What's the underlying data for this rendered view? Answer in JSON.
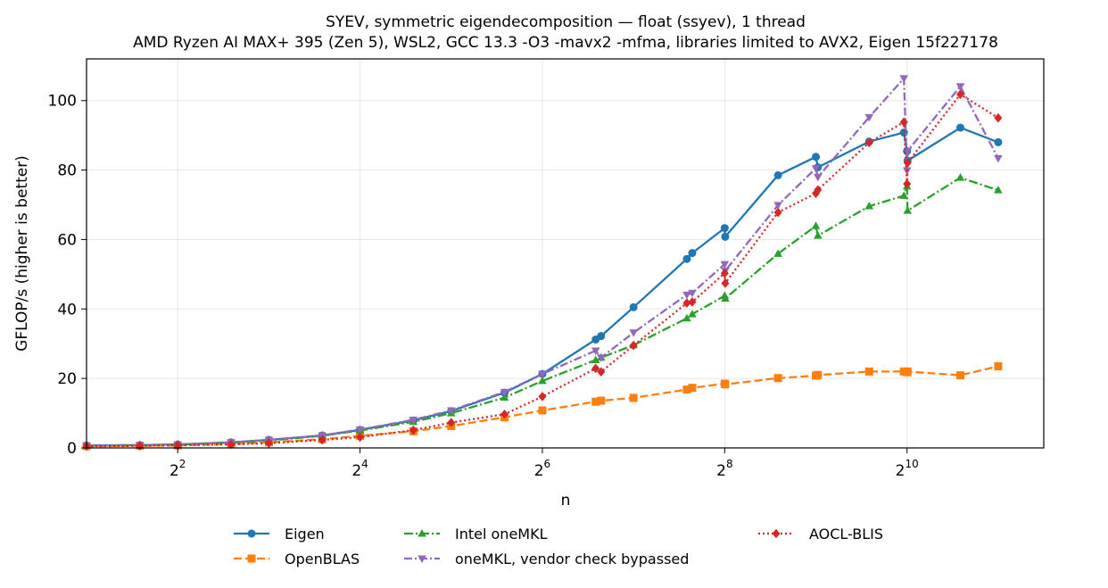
{
  "chart_data": {
    "type": "line",
    "title": "SYEV, symmetric eigendecomposition — float (ssyev), 1 thread",
    "subtitle": "AMD Ryzen AI MAX+ 395 (Zen 5), WSL2, GCC 13.3 -O3 -mavx2 -mfma, libraries limited to AVX2, Eigen 15f227178",
    "xlabel": "n",
    "ylabel": "GFLOP/s (higher is better)",
    "x_scale": "log2",
    "xlim": [
      2,
      2896
    ],
    "ylim": [
      0,
      112
    ],
    "x_ticks": [
      {
        "value": 4,
        "base": "2",
        "exp": "2"
      },
      {
        "value": 16,
        "base": "2",
        "exp": "4"
      },
      {
        "value": 64,
        "base": "2",
        "exp": "6"
      },
      {
        "value": 256,
        "base": "2",
        "exp": "8"
      },
      {
        "value": 1024,
        "base": "2",
        "exp": "10"
      }
    ],
    "y_ticks": [
      0,
      20,
      40,
      60,
      80,
      100
    ],
    "grid": true,
    "legend_position": "below-center",
    "x": [
      2,
      3,
      4,
      6,
      8,
      12,
      16,
      24,
      32,
      48,
      64,
      96,
      100,
      128,
      192,
      200,
      256,
      257,
      384,
      512,
      520,
      768,
      1000,
      1024,
      1028,
      1536,
      2048
    ],
    "series": [
      {
        "name": "Eigen",
        "color": "#1f77b4",
        "marker": "circle",
        "dash": "",
        "values": [
          0.7,
          0.8,
          1.0,
          1.6,
          2.3,
          3.6,
          5.2,
          7.9,
          10.6,
          15.9,
          21.3,
          31.2,
          32.2,
          40.5,
          54.4,
          56.1,
          63.3,
          60.8,
          78.5,
          83.8,
          80.8,
          88.2,
          90.8,
          85.4,
          82.7,
          92.2,
          88.0
        ]
      },
      {
        "name": "OpenBLAS",
        "color": "#ff7f0e",
        "marker": "square",
        "dash": "9,4",
        "values": [
          0.5,
          0.6,
          0.7,
          1.1,
          1.6,
          2.5,
          3.5,
          4.8,
          6.3,
          8.8,
          10.8,
          13.3,
          13.6,
          14.4,
          16.8,
          17.3,
          18.5,
          18.3,
          20.1,
          20.8,
          21.0,
          22.0,
          22.0,
          21.8,
          22.0,
          20.9,
          23.5
        ]
      },
      {
        "name": "Intel oneMKL",
        "color": "#2ca02c",
        "marker": "triangle-up",
        "dash": "10,3,2,3",
        "values": [
          0.7,
          0.8,
          1.0,
          1.5,
          2.1,
          3.5,
          5.0,
          7.5,
          10.0,
          14.5,
          19.3,
          25.3,
          26.0,
          29.6,
          37.3,
          38.5,
          43.8,
          43.0,
          55.9,
          63.9,
          61.1,
          69.6,
          72.6,
          75.3,
          68.3,
          77.8,
          74.2
        ]
      },
      {
        "name": "oneMKL, vendor check bypassed",
        "color": "#9467bd",
        "marker": "triangle-down",
        "dash": "9,3,2,3",
        "values": [
          0.7,
          0.8,
          1.0,
          1.6,
          2.3,
          3.6,
          5.3,
          8.1,
          10.8,
          16.1,
          21.3,
          28.0,
          26.0,
          33.2,
          44.1,
          44.6,
          52.9,
          51.0,
          69.9,
          80.5,
          78.0,
          95.2,
          106.4,
          79.9,
          85.5,
          104.1,
          83.4
        ]
      },
      {
        "name": "AOCL-BLIS",
        "color": "#d62728",
        "marker": "diamond",
        "dash": "2,3",
        "values": [
          0.5,
          0.6,
          0.8,
          1.0,
          1.4,
          2.3,
          3.1,
          5.1,
          7.3,
          9.7,
          14.8,
          22.9,
          21.9,
          29.5,
          41.7,
          42.0,
          50.3,
          47.4,
          67.8,
          73.3,
          74.3,
          87.9,
          93.8,
          76.0,
          82.1,
          101.8,
          95.0
        ]
      }
    ],
    "legend_layout": [
      [
        0,
        1
      ],
      [
        2,
        3
      ],
      [
        4
      ]
    ]
  }
}
